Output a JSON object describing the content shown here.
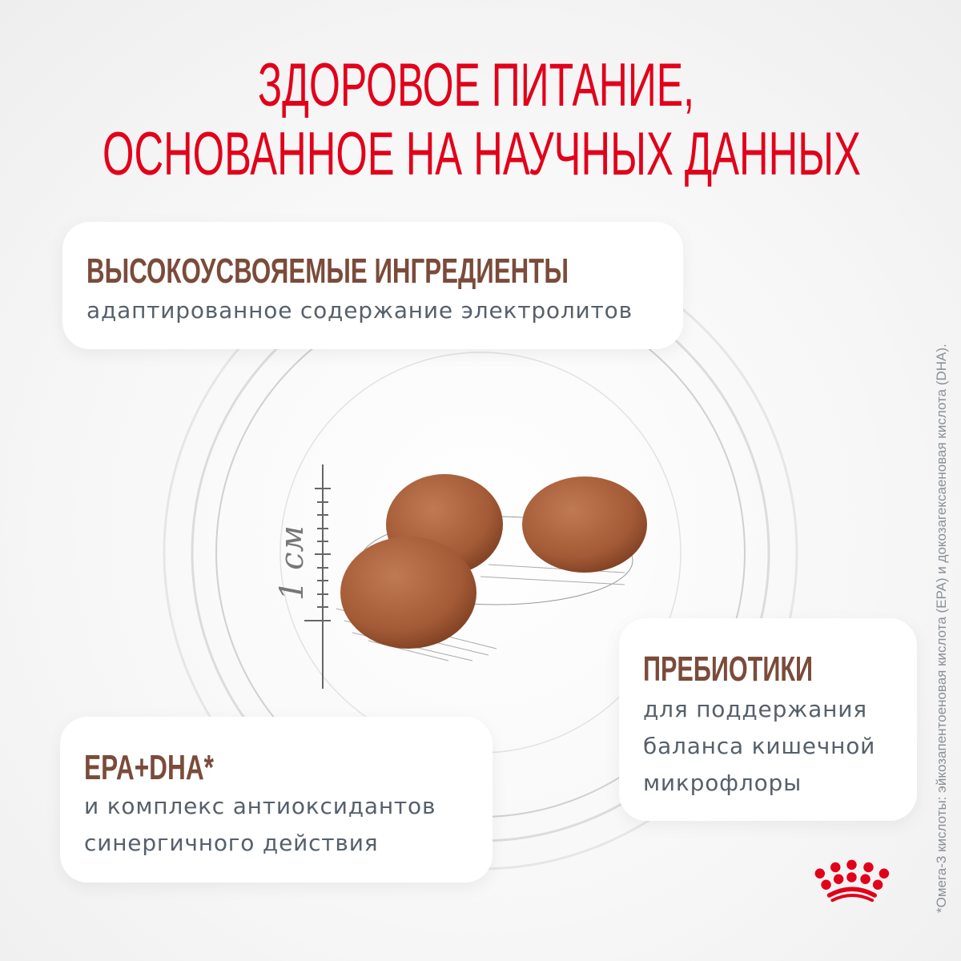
{
  "title": {
    "line1": "ЗДОРОВОЕ ПИТАНИЕ,",
    "line2": "ОСНОВАННОЕ НА НАУЧНЫХ ДАННЫХ"
  },
  "ruler_label": "1 см",
  "cards": [
    {
      "heading": "ВЫСОКОУСВОЯЕМЫЕ ИНГРЕДИЕНТЫ",
      "lines": [
        "адаптированное содержание электролитов"
      ]
    },
    {
      "heading": "ПРЕБИОТИКИ",
      "lines": [
        "для поддержания",
        "баланса кишечной",
        "микрофлоры"
      ]
    },
    {
      "heading": "EPA+DHA*",
      "lines": [
        "и комплекс антиоксидантов",
        "синергичного действия"
      ]
    }
  ],
  "footnote": "*Омега-3 кислоты: эйкозапентоеновая кислота (EPA) и докозагексаеновая кислота (DHA).",
  "logo": {
    "icon": "royal-canin-crown-icon",
    "color": "#e2001a"
  },
  "colors": {
    "title": "#e2001a",
    "heading": "#7b4b3a",
    "body": "#56606b",
    "kibble": "#a8623e"
  }
}
